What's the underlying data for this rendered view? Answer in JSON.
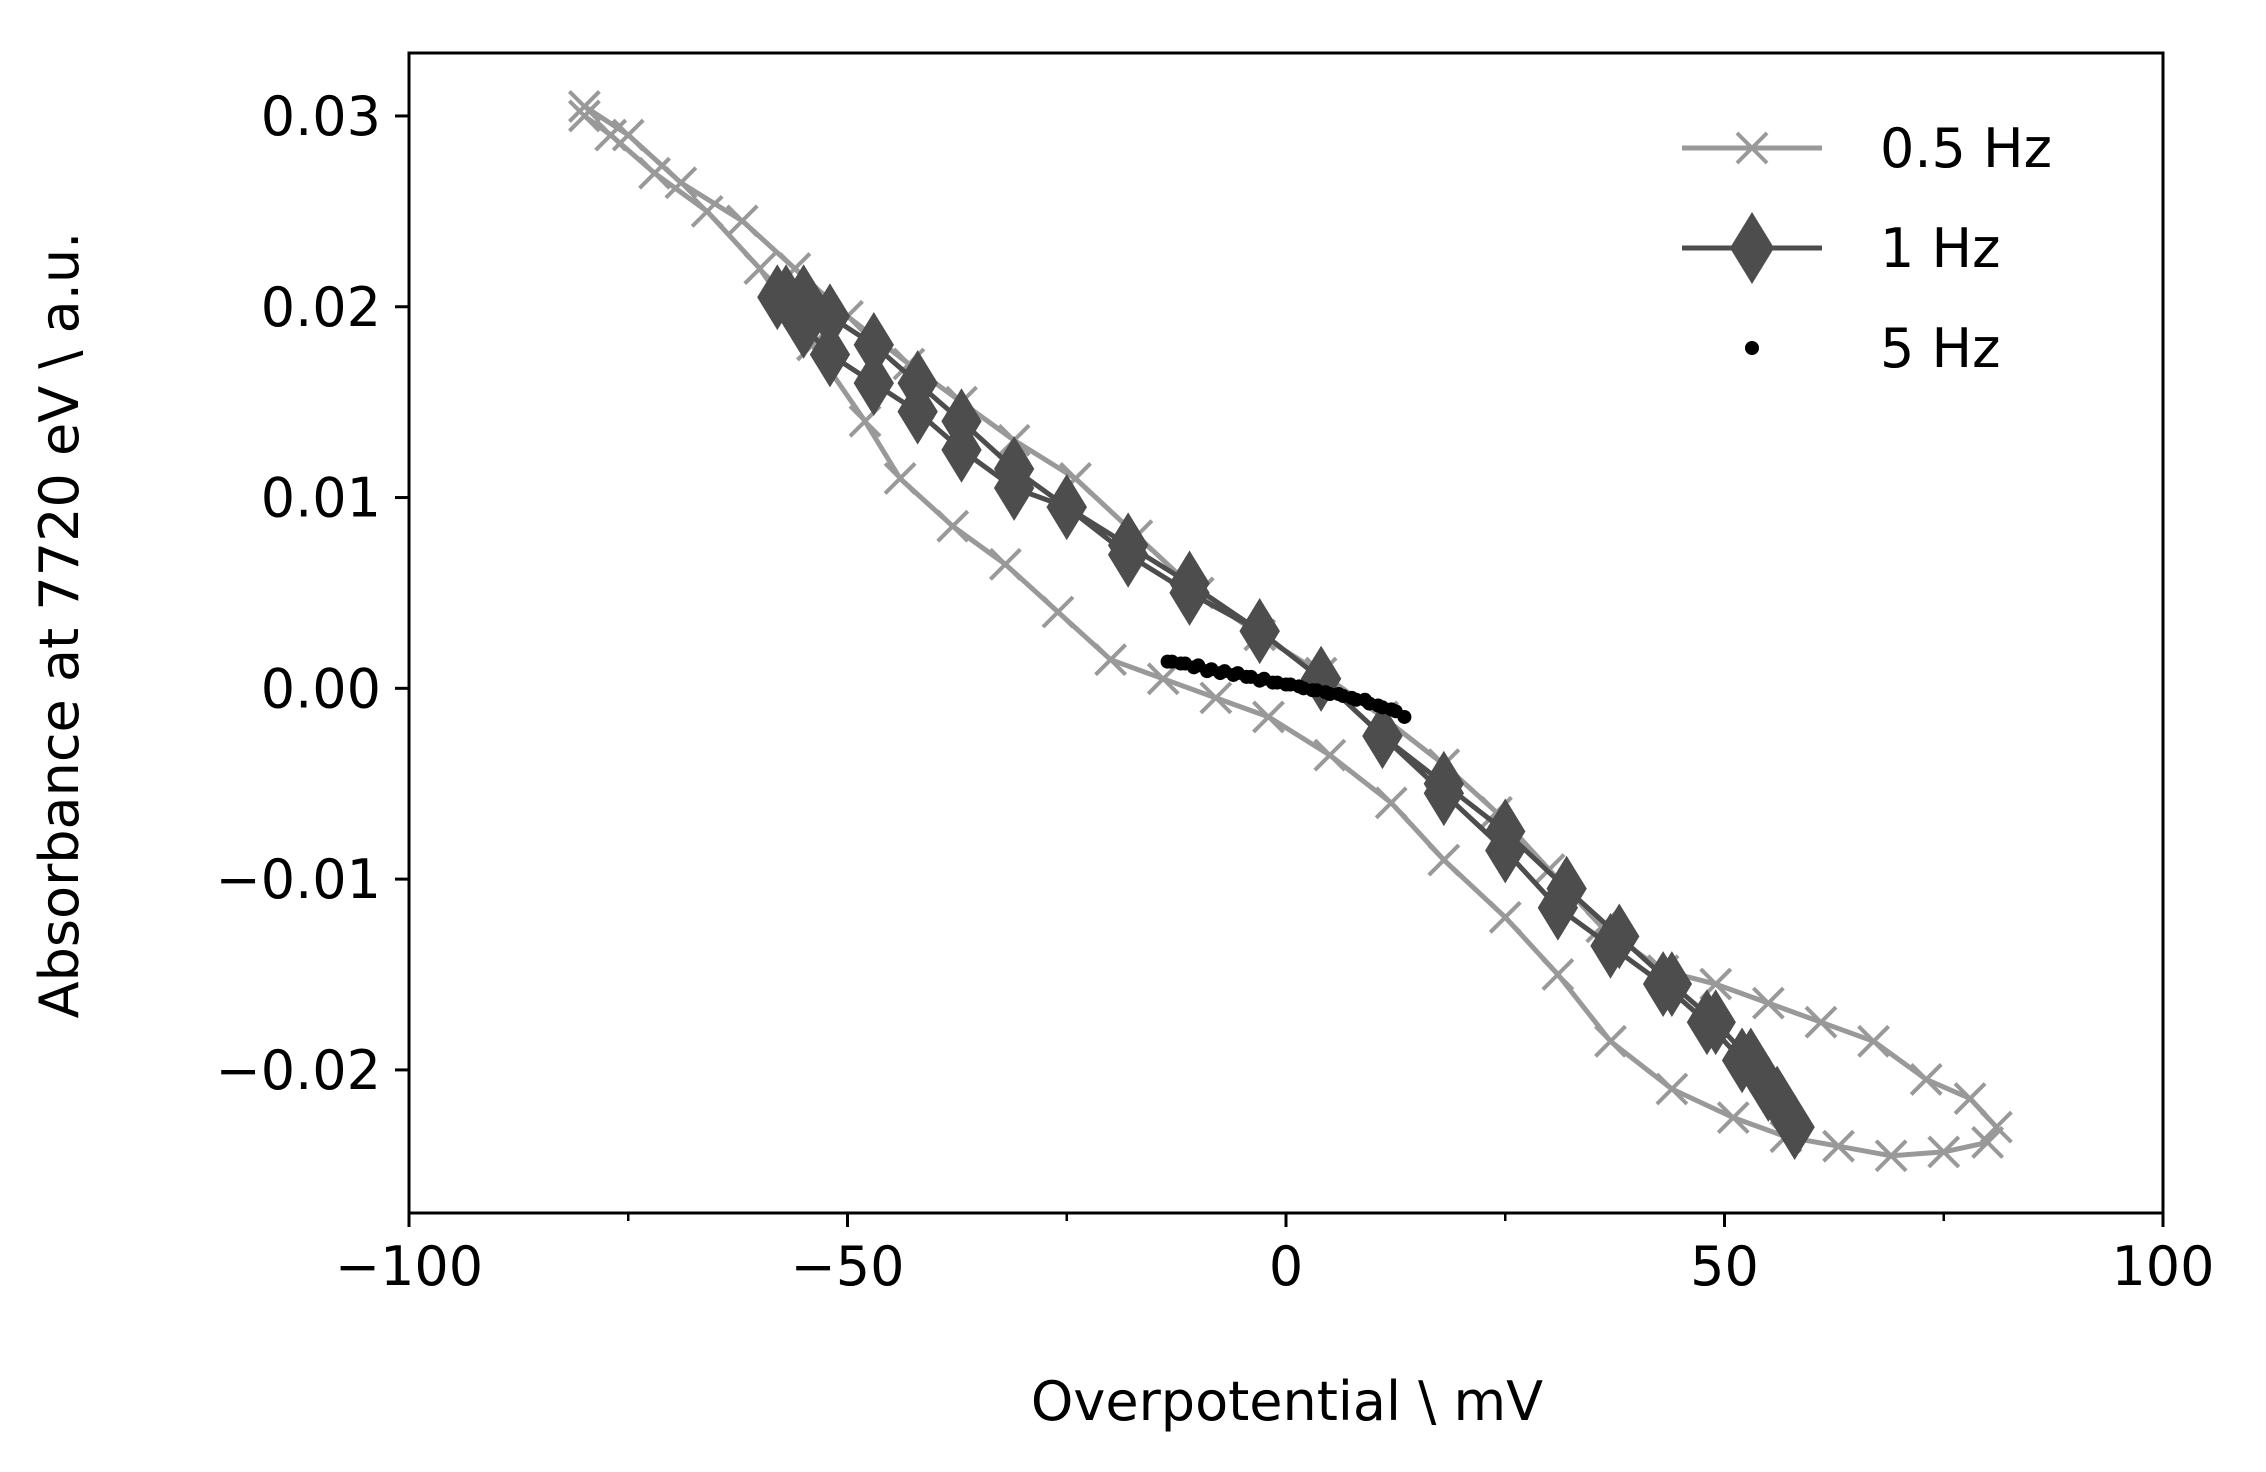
{
  "chart_data": {
    "type": "line",
    "title": "",
    "xlabel": "Overpotential \\ mV",
    "ylabel": "Absorbance at 7720 eV \\ a.u.",
    "xlim": [
      -100,
      100
    ],
    "ylim": [
      -0.0275,
      0.0333
    ],
    "xticks": [
      -100,
      -50,
      0,
      50,
      100
    ],
    "xtick_labels": [
      "−100",
      "−50",
      "0",
      "50",
      "100"
    ],
    "x_minor_ticks": [
      -75,
      -25,
      25,
      75
    ],
    "yticks": [
      0.03,
      0.02,
      0.01,
      0.0,
      -0.01,
      -0.02
    ],
    "ytick_labels": [
      "0.03",
      "0.02",
      "0.01",
      "0.00",
      "−0.01",
      "−0.02"
    ],
    "grid": false,
    "legend_position": "top-right",
    "series": [
      {
        "name": "0.5 Hz",
        "color": "#999999",
        "marker": "x",
        "line": true,
        "points": [
          [
            -80,
            0.03
          ],
          [
            -77,
            0.029
          ],
          [
            -72,
            0.027
          ],
          [
            -66,
            0.025
          ],
          [
            -60,
            0.022
          ],
          [
            -54,
            0.018
          ],
          [
            -48,
            0.014
          ],
          [
            -44,
            0.011
          ],
          [
            -38,
            0.0085
          ],
          [
            -32,
            0.0065
          ],
          [
            -26,
            0.004
          ],
          [
            -20,
            0.0015
          ],
          [
            -14,
            0.0005
          ],
          [
            -8,
            -0.0005
          ],
          [
            -2,
            -0.0015
          ],
          [
            5,
            -0.0035
          ],
          [
            12,
            -0.006
          ],
          [
            18,
            -0.009
          ],
          [
            25,
            -0.012
          ],
          [
            31,
            -0.015
          ],
          [
            37,
            -0.0185
          ],
          [
            44,
            -0.021
          ],
          [
            51,
            -0.0225
          ],
          [
            57,
            -0.0235
          ],
          [
            63,
            -0.024
          ],
          [
            69,
            -0.0245
          ],
          [
            75,
            -0.0243
          ],
          [
            80,
            -0.0238
          ],
          [
            81,
            -0.023
          ],
          [
            78,
            -0.0215
          ],
          [
            73,
            -0.0205
          ],
          [
            67,
            -0.0185
          ],
          [
            61,
            -0.0175
          ],
          [
            55,
            -0.0165
          ],
          [
            49,
            -0.0155
          ],
          [
            43,
            -0.0148
          ],
          [
            36,
            -0.0125
          ],
          [
            30,
            -0.0095
          ],
          [
            24,
            -0.0065
          ],
          [
            18,
            -0.004
          ],
          [
            11,
            -0.0015
          ],
          [
            4,
            0.0008
          ],
          [
            -3,
            0.0028
          ],
          [
            -10,
            0.005
          ],
          [
            -17,
            0.008
          ],
          [
            -24,
            0.011
          ],
          [
            -31,
            0.013
          ],
          [
            -37,
            0.015
          ],
          [
            -43,
            0.017
          ],
          [
            -50,
            0.0195
          ],
          [
            -56,
            0.022
          ],
          [
            -62,
            0.0245
          ],
          [
            -69,
            0.0265
          ],
          [
            -75,
            0.029
          ],
          [
            -80,
            0.0305
          ]
        ]
      },
      {
        "name": "1 Hz",
        "color": "#4d4d4d",
        "marker": "diamond",
        "line": true,
        "points": [
          [
            -58,
            0.0205
          ],
          [
            -55,
            0.019
          ],
          [
            -52,
            0.0175
          ],
          [
            -47,
            0.016
          ],
          [
            -42,
            0.0145
          ],
          [
            -37,
            0.0125
          ],
          [
            -31,
            0.0105
          ],
          [
            -25,
            0.0095
          ],
          [
            -18,
            0.007
          ],
          [
            -11,
            0.005
          ],
          [
            -3,
            0.003
          ],
          [
            4,
            0.0005
          ],
          [
            11,
            -0.0025
          ],
          [
            18,
            -0.0055
          ],
          [
            25,
            -0.0085
          ],
          [
            31,
            -0.0115
          ],
          [
            37,
            -0.0135
          ],
          [
            43,
            -0.0155
          ],
          [
            48,
            -0.0175
          ],
          [
            52,
            -0.0195
          ],
          [
            55,
            -0.021
          ],
          [
            58,
            -0.023
          ],
          [
            56,
            -0.0215
          ],
          [
            53,
            -0.0195
          ],
          [
            49,
            -0.0175
          ],
          [
            44,
            -0.0155
          ],
          [
            38,
            -0.013
          ],
          [
            32,
            -0.0105
          ],
          [
            25,
            -0.0075
          ],
          [
            18,
            -0.005
          ],
          [
            11,
            -0.0025
          ],
          [
            4,
            0.0005
          ],
          [
            -3,
            0.003
          ],
          [
            -11,
            0.0055
          ],
          [
            -18,
            0.0075
          ],
          [
            -25,
            0.0095
          ],
          [
            -31,
            0.0115
          ],
          [
            -37,
            0.014
          ],
          [
            -42,
            0.016
          ],
          [
            -47,
            0.018
          ],
          [
            -52,
            0.0195
          ],
          [
            -55,
            0.0205
          ],
          [
            -57,
            0.0205
          ]
        ]
      },
      {
        "name": "5 Hz",
        "color": "#000000",
        "marker": "dot",
        "line": false,
        "points": [
          [
            -13.5,
            0.0014
          ],
          [
            -12,
            0.0013
          ],
          [
            -10.5,
            0.0011
          ],
          [
            -9,
            0.0009
          ],
          [
            -7.5,
            0.0008
          ],
          [
            -6,
            0.0007
          ],
          [
            -4.5,
            0.0006
          ],
          [
            -3,
            0.0004
          ],
          [
            -1.5,
            0.0003
          ],
          [
            0,
            0.0002
          ],
          [
            1.5,
            0.0001
          ],
          [
            3,
            -0.0001
          ],
          [
            4.5,
            -0.0002
          ],
          [
            6,
            -0.0003
          ],
          [
            7.5,
            -0.0005
          ],
          [
            9,
            -0.0006
          ],
          [
            10.5,
            -0.0009
          ],
          [
            12,
            -0.0011
          ],
          [
            13.5,
            -0.0015
          ],
          [
            12.5,
            -0.0012
          ],
          [
            11,
            -0.001
          ],
          [
            9.5,
            -0.0008
          ],
          [
            8,
            -0.0006
          ],
          [
            6.5,
            -0.0004
          ],
          [
            5,
            -0.0003
          ],
          [
            3.5,
            -0.0001
          ],
          [
            2,
            0.0
          ],
          [
            0.5,
            0.0002
          ],
          [
            -1,
            0.0003
          ],
          [
            -2.5,
            0.0005
          ],
          [
            -4,
            0.0006
          ],
          [
            -5.5,
            0.0008
          ],
          [
            -7,
            0.0009
          ],
          [
            -8.5,
            0.001
          ],
          [
            -10,
            0.0012
          ],
          [
            -11.5,
            0.0013
          ],
          [
            -13,
            0.0014
          ]
        ]
      }
    ]
  }
}
